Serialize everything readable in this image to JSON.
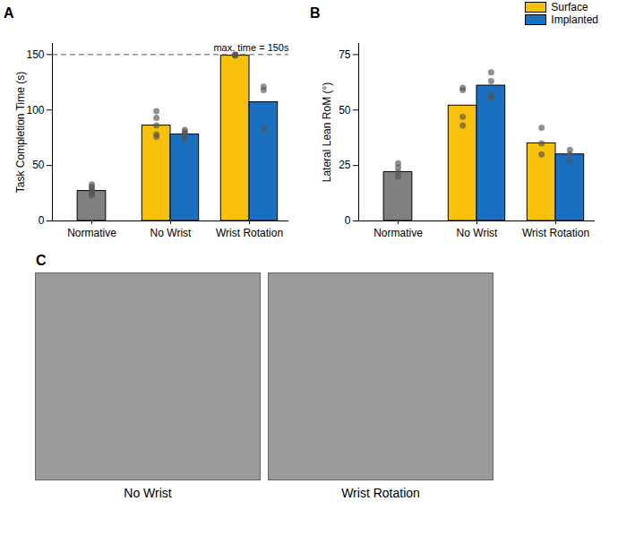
{
  "chart_data": [
    {
      "type": "bar",
      "panel": "A",
      "y_label": "Task Completion Time (s)",
      "categories": [
        "Normative",
        "No Wrist",
        "Wrist Rotation"
      ],
      "ylim": [
        0,
        160
      ],
      "yticks": [
        0,
        50,
        100,
        150
      ],
      "baseline": {
        "category": "Normative",
        "value": 27,
        "color": "#808080",
        "points": [
          23,
          25,
          27,
          29,
          31,
          33
        ]
      },
      "series": [
        {
          "name": "Surface",
          "color": "#f8c20c",
          "values": [
            null,
            86,
            149
          ],
          "points": [
            [],
            [
              76,
              78,
              86,
              93,
              99
            ],
            [
              149,
              150,
              150
            ]
          ]
        },
        {
          "name": "Implanted",
          "color": "#1a6fbf",
          "values": [
            null,
            78,
            107
          ],
          "points": [
            [],
            [
              74,
              76,
              78,
              80,
              82
            ],
            [
              83,
              118,
              121
            ]
          ]
        }
      ],
      "annotations": [
        {
          "text": "max. time = 150s",
          "value": 150,
          "line_style": "dashed"
        }
      ]
    },
    {
      "type": "bar",
      "panel": "B",
      "y_label": "Lateral Lean RoM (°)",
      "categories": [
        "Normative",
        "No Wrist",
        "Wrist Rotation"
      ],
      "ylim": [
        0,
        80
      ],
      "yticks": [
        0,
        25,
        50,
        75
      ],
      "legend": "top-right",
      "baseline": {
        "category": "Normative",
        "value": 22,
        "color": "#808080",
        "points": [
          20,
          22,
          24,
          26
        ]
      },
      "series": [
        {
          "name": "Surface",
          "color": "#f8c20c",
          "values": [
            null,
            52,
            35
          ],
          "points": [
            [],
            [
              43,
              47,
              59,
              60
            ],
            [
              30,
              35,
              42
            ]
          ]
        },
        {
          "name": "Implanted",
          "color": "#1a6fbf",
          "values": [
            null,
            61,
            30
          ],
          "points": [
            [],
            [
              56,
              57,
              63,
              67
            ],
            [
              27,
              30,
              32
            ]
          ]
        }
      ]
    }
  ],
  "panel_c": {
    "panel": "C",
    "captions": [
      "No Wrist",
      "Wrist Rotation"
    ]
  }
}
